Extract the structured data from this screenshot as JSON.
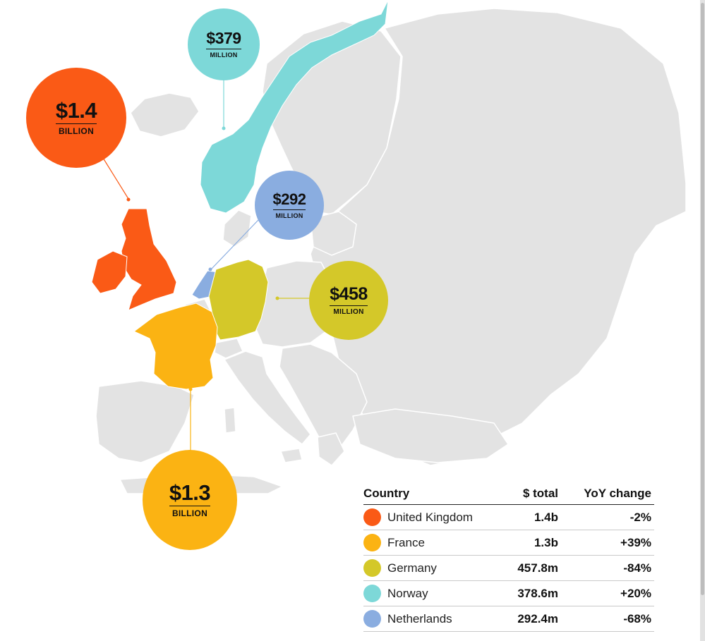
{
  "colors": {
    "land": "#e3e3e3",
    "border": "#ffffff",
    "united_kingdom": "#fa5a16",
    "france": "#fbb313",
    "germany": "#d4c829",
    "norway": "#7dd8d8",
    "netherlands": "#8aade0"
  },
  "callouts": [
    {
      "country": "Norway",
      "amount": "$379",
      "unit": "MILLION"
    },
    {
      "country": "United Kingdom",
      "amount": "$1.4",
      "unit": "BILLION"
    },
    {
      "country": "Netherlands",
      "amount": "$292",
      "unit": "MILLION"
    },
    {
      "country": "Germany",
      "amount": "$458",
      "unit": "MILLION"
    },
    {
      "country": "France",
      "amount": "$1.3",
      "unit": "BILLION"
    }
  ],
  "table": {
    "headers": {
      "country": "Country",
      "total": "$ total",
      "yoy": "YoY change"
    },
    "rows": [
      {
        "country": "United Kingdom",
        "total": "1.4b",
        "yoy": "-2%",
        "color": "#fa5a16"
      },
      {
        "country": "France",
        "total": "1.3b",
        "yoy": "+39%",
        "color": "#fbb313"
      },
      {
        "country": "Germany",
        "total": "457.8m",
        "yoy": "-84%",
        "color": "#d4c829"
      },
      {
        "country": "Norway",
        "total": "378.6m",
        "yoy": "+20%",
        "color": "#7dd8d8"
      },
      {
        "country": "Netherlands",
        "total": "292.4m",
        "yoy": "-68%",
        "color": "#8aade0"
      }
    ]
  }
}
